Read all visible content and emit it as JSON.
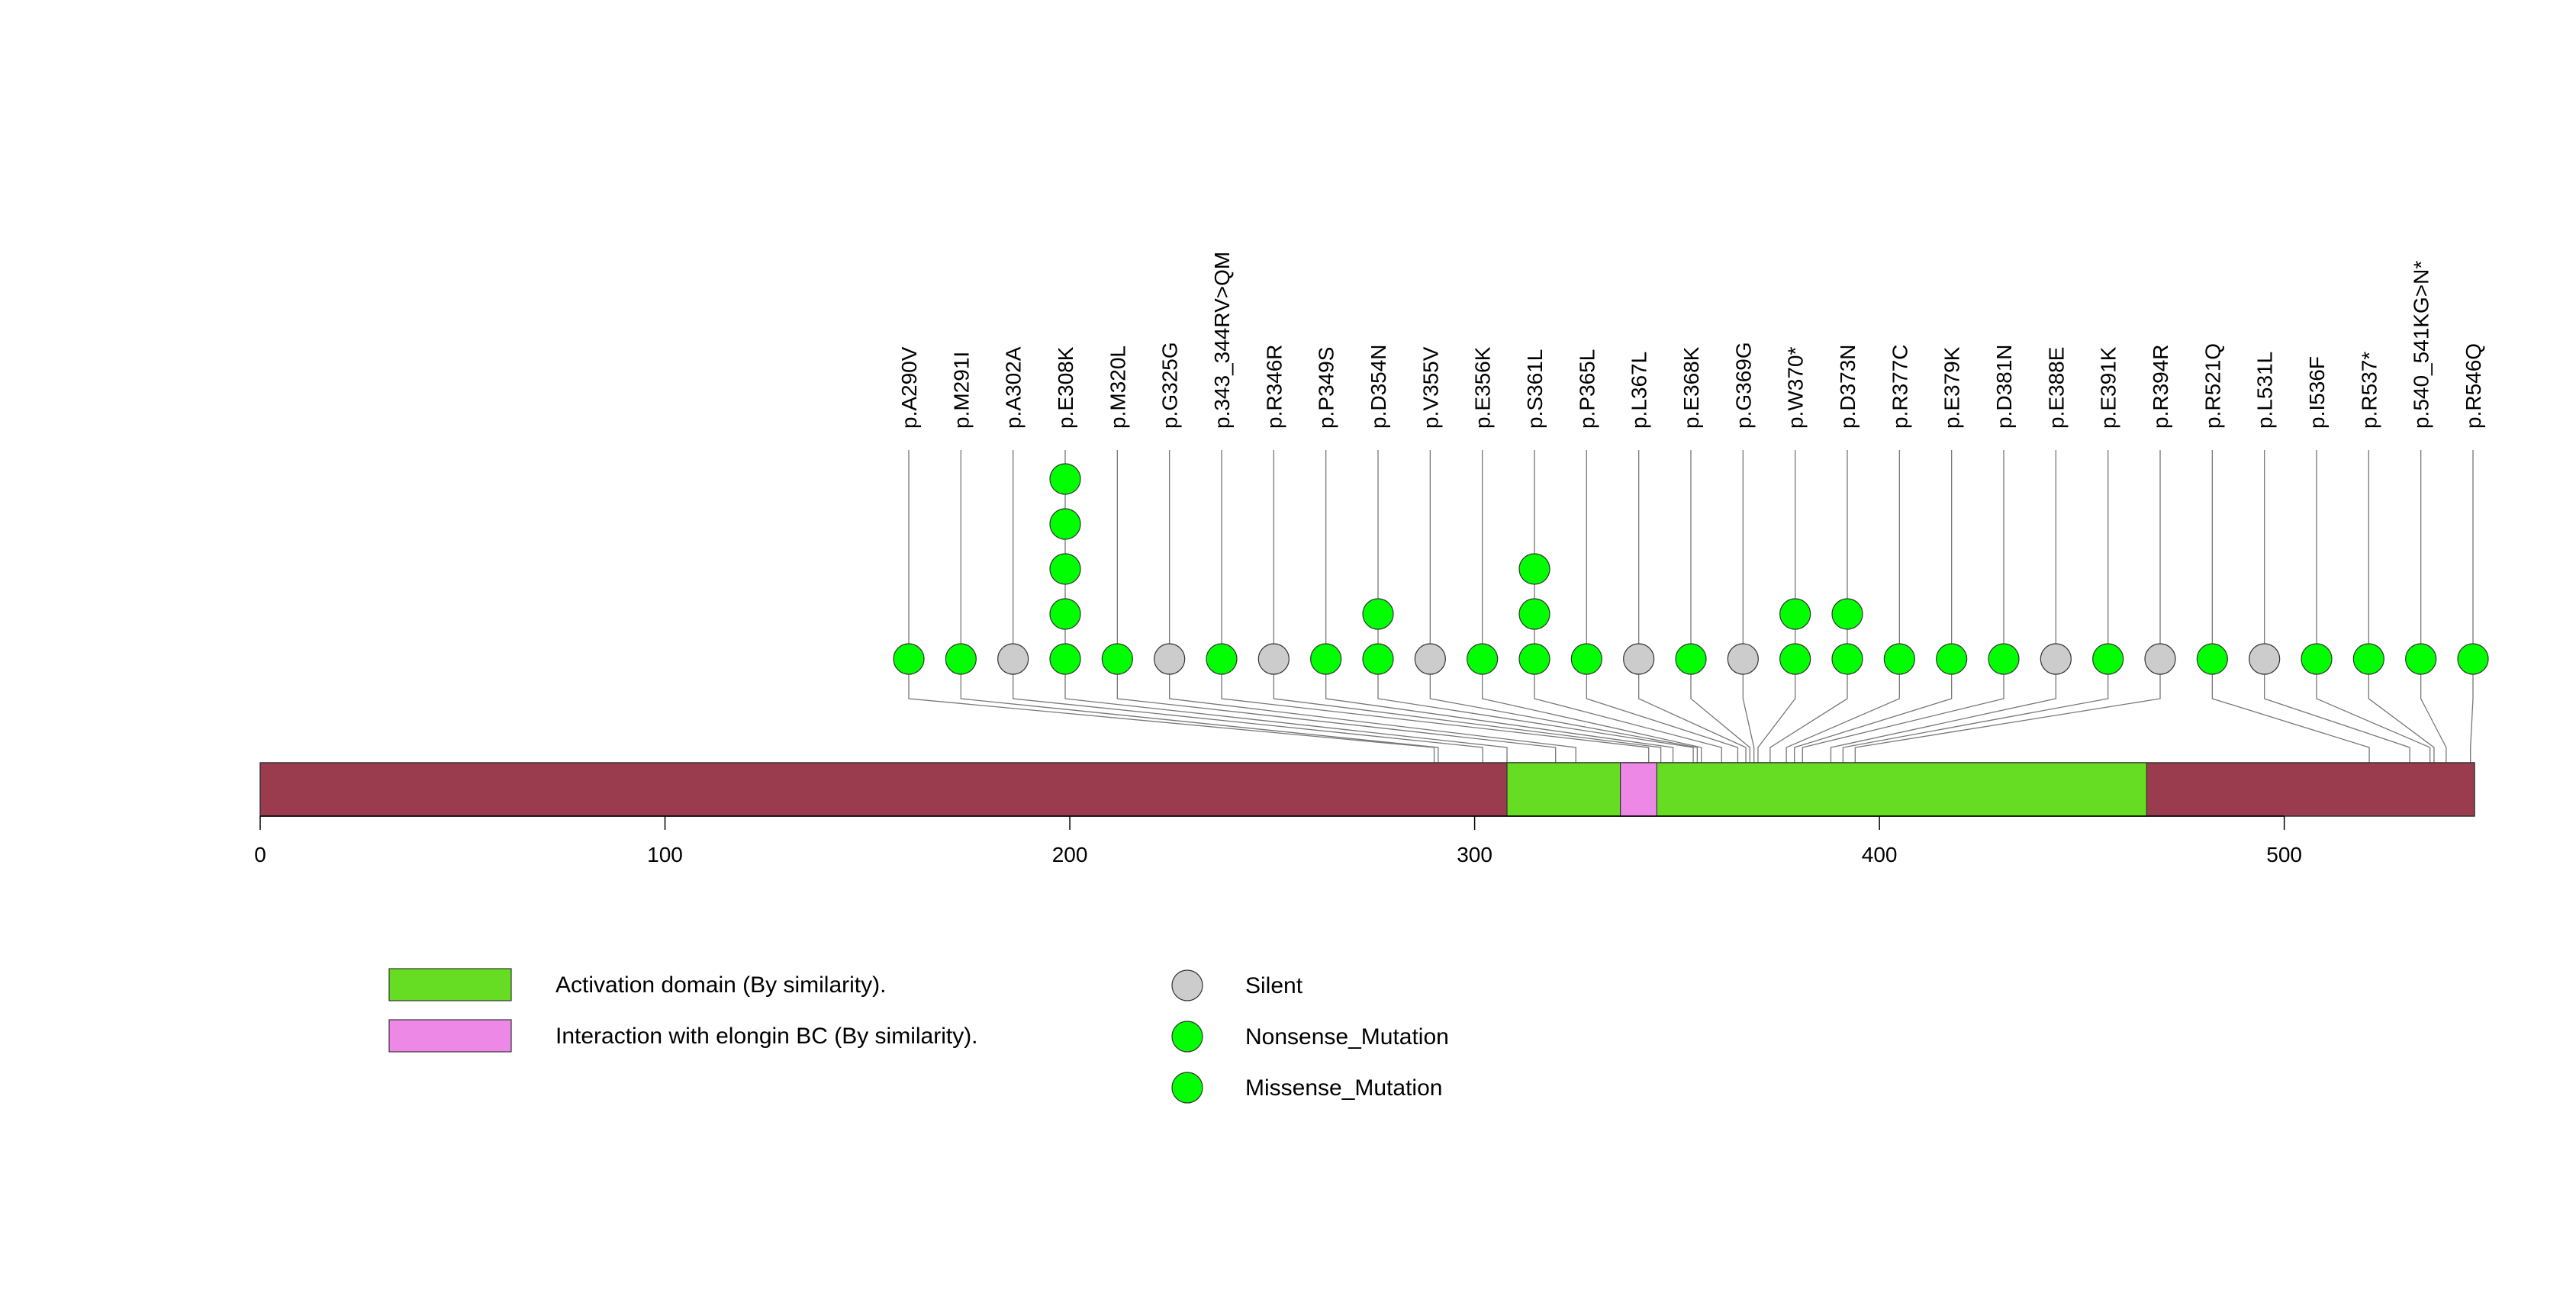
{
  "colors": {
    "protein_bar": "#9A3B4E",
    "activation_domain": "#66DD22",
    "elongin_domain": "#EE88E6",
    "silent": "#CCCCCC",
    "nonsense": "#00FF00",
    "missense": "#00FF00",
    "stem": "#777777"
  },
  "chart_data": {
    "type": "lollipop",
    "title": "",
    "xlabel": "",
    "ylabel": "",
    "protein_length": 547,
    "xlim": [
      0,
      547
    ],
    "xticks": [
      0,
      100,
      200,
      300,
      400,
      500
    ],
    "domains": [
      {
        "name": "Activation domain (By similarity).",
        "start": 308,
        "end": 466,
        "color_key": "activation_domain"
      },
      {
        "name": "Interaction with elongin BC (By similarity).",
        "start": 336,
        "end": 345,
        "color_key": "elongin_domain"
      }
    ],
    "mutations": [
      {
        "label": "p.A290V",
        "position": 290,
        "counts": [
          {
            "type": "Missense_Mutation",
            "count": 1
          }
        ]
      },
      {
        "label": "p.M291I",
        "position": 291,
        "counts": [
          {
            "type": "Missense_Mutation",
            "count": 1
          }
        ]
      },
      {
        "label": "p.A302A",
        "position": 302,
        "counts": [
          {
            "type": "Silent",
            "count": 1
          }
        ]
      },
      {
        "label": "p.E308K",
        "position": 308,
        "counts": [
          {
            "type": "Missense_Mutation",
            "count": 5
          }
        ]
      },
      {
        "label": "p.M320L",
        "position": 320,
        "counts": [
          {
            "type": "Missense_Mutation",
            "count": 1
          }
        ]
      },
      {
        "label": "p.G325G",
        "position": 325,
        "counts": [
          {
            "type": "Silent",
            "count": 1
          }
        ]
      },
      {
        "label": "p.343_344RV>QM",
        "position": 343,
        "counts": [
          {
            "type": "Missense_Mutation",
            "count": 1
          }
        ]
      },
      {
        "label": "p.R346R",
        "position": 346,
        "counts": [
          {
            "type": "Silent",
            "count": 1
          }
        ]
      },
      {
        "label": "p.P349S",
        "position": 349,
        "counts": [
          {
            "type": "Missense_Mutation",
            "count": 1
          }
        ]
      },
      {
        "label": "p.D354N",
        "position": 354,
        "counts": [
          {
            "type": "Missense_Mutation",
            "count": 2
          }
        ]
      },
      {
        "label": "p.V355V",
        "position": 355,
        "counts": [
          {
            "type": "Silent",
            "count": 1
          }
        ]
      },
      {
        "label": "p.E356K",
        "position": 356,
        "counts": [
          {
            "type": "Missense_Mutation",
            "count": 1
          }
        ]
      },
      {
        "label": "p.S361L",
        "position": 361,
        "counts": [
          {
            "type": "Missense_Mutation",
            "count": 3
          }
        ]
      },
      {
        "label": "p.P365L",
        "position": 365,
        "counts": [
          {
            "type": "Missense_Mutation",
            "count": 1
          }
        ]
      },
      {
        "label": "p.L367L",
        "position": 367,
        "counts": [
          {
            "type": "Silent",
            "count": 1
          }
        ]
      },
      {
        "label": "p.E368K",
        "position": 368,
        "counts": [
          {
            "type": "Missense_Mutation",
            "count": 1
          }
        ]
      },
      {
        "label": "p.G369G",
        "position": 369,
        "counts": [
          {
            "type": "Silent",
            "count": 1
          }
        ]
      },
      {
        "label": "p.W370*",
        "position": 370,
        "counts": [
          {
            "type": "Nonsense_Mutation",
            "count": 2
          }
        ]
      },
      {
        "label": "p.D373N",
        "position": 373,
        "counts": [
          {
            "type": "Missense_Mutation",
            "count": 2
          }
        ]
      },
      {
        "label": "p.R377C",
        "position": 377,
        "counts": [
          {
            "type": "Missense_Mutation",
            "count": 1
          }
        ]
      },
      {
        "label": "p.E379K",
        "position": 379,
        "counts": [
          {
            "type": "Missense_Mutation",
            "count": 1
          }
        ]
      },
      {
        "label": "p.D381N",
        "position": 381,
        "counts": [
          {
            "type": "Missense_Mutation",
            "count": 1
          }
        ]
      },
      {
        "label": "p.E388E",
        "position": 388,
        "counts": [
          {
            "type": "Silent",
            "count": 1
          }
        ]
      },
      {
        "label": "p.E391K",
        "position": 391,
        "counts": [
          {
            "type": "Missense_Mutation",
            "count": 1
          }
        ]
      },
      {
        "label": "p.R394R",
        "position": 394,
        "counts": [
          {
            "type": "Silent",
            "count": 1
          }
        ]
      },
      {
        "label": "p.R521Q",
        "position": 521,
        "counts": [
          {
            "type": "Missense_Mutation",
            "count": 1
          }
        ]
      },
      {
        "label": "p.L531L",
        "position": 531,
        "counts": [
          {
            "type": "Silent",
            "count": 1
          }
        ]
      },
      {
        "label": "p.I536F",
        "position": 536,
        "counts": [
          {
            "type": "Missense_Mutation",
            "count": 1
          }
        ]
      },
      {
        "label": "p.R537*",
        "position": 537,
        "counts": [
          {
            "type": "Nonsense_Mutation",
            "count": 1
          }
        ]
      },
      {
        "label": "p.540_541KG>N*",
        "position": 540,
        "counts": [
          {
            "type": "Nonsense_Mutation",
            "count": 1
          }
        ]
      },
      {
        "label": "p.R546Q",
        "position": 546,
        "counts": [
          {
            "type": "Missense_Mutation",
            "count": 1
          }
        ]
      }
    ],
    "legend": {
      "domains": [
        {
          "label": "Activation domain (By similarity).",
          "color_key": "activation_domain"
        },
        {
          "label": "Interaction with elongin BC (By similarity).",
          "color_key": "elongin_domain"
        }
      ],
      "mutation_types": [
        {
          "label": "Silent",
          "color_key": "silent"
        },
        {
          "label": "Nonsense_Mutation",
          "color_key": "nonsense"
        },
        {
          "label": "Missense_Mutation",
          "color_key": "missense"
        }
      ]
    }
  }
}
